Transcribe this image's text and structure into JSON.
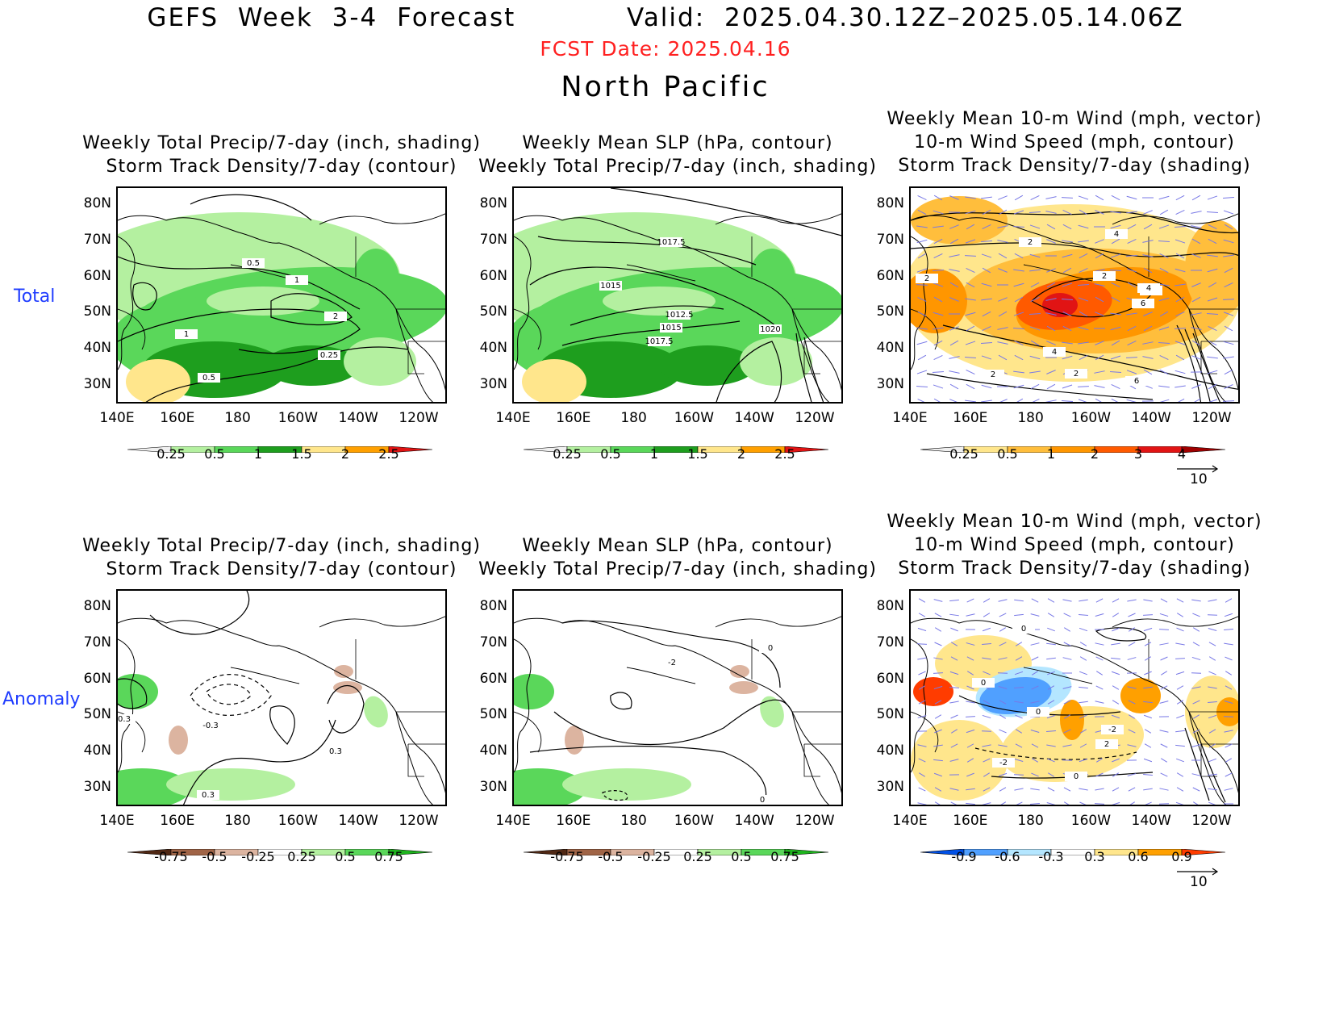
{
  "header": {
    "title": "GEFS Week 3-4 Forecast",
    "valid": "Valid: 2025.04.30.12Z–2025.05.14.06Z",
    "fcst_date": "FCST Date: 2025.04.16",
    "region": "North Pacific"
  },
  "row_labels": {
    "total": "Total",
    "anomaly": "Anomaly"
  },
  "axes": {
    "lat_ticks": [
      "80N",
      "70N",
      "60N",
      "50N",
      "40N",
      "30N"
    ],
    "lon_ticks": [
      "140E",
      "160E",
      "180",
      "160W",
      "140W",
      "120W"
    ]
  },
  "panels": {
    "total_precip": {
      "title1": "Weekly Total Precip/7-day (inch, shading)",
      "title2": "Storm Track Density/7-day (contour)",
      "contour_labels": [
        "0.5",
        "1",
        "2",
        "1",
        "0.25",
        "0.5"
      ],
      "colorbar": [
        "0.25",
        "0.5",
        "1",
        "1.5",
        "2",
        "2.5"
      ]
    },
    "total_slp": {
      "title1": "Weekly Mean SLP (hPa, contour)",
      "title2": "Weekly Total Precip/7-day (inch, shading)",
      "contour_labels": [
        "1017.5",
        "1015",
        "1012.5",
        "1015",
        "1017.5",
        "1020"
      ],
      "colorbar": [
        "0.25",
        "0.5",
        "1",
        "1.5",
        "2",
        "2.5"
      ]
    },
    "total_wind": {
      "title1": "Weekly Mean 10-m Wind (mph, vector)",
      "title2": "10-m Wind Speed (mph, contour)",
      "title3": "Storm Track Density/7-day (shading)",
      "contour_labels": [
        "2",
        "4",
        "2",
        "2",
        "4",
        "6",
        "4",
        "4",
        "2",
        "6",
        "2"
      ],
      "colorbar": [
        "0.25",
        "0.5",
        "1",
        "2",
        "3",
        "4"
      ],
      "vector_ref": "10"
    },
    "anom_precip": {
      "title1": "Weekly Total Precip/7-day (inch, shading)",
      "title2": "Storm Track Density/7-day (contour)",
      "contour_labels": [
        "0.3",
        "-0.3",
        "0.3",
        "0.3"
      ],
      "colorbar": [
        "-0.75",
        "-0.5",
        "-0.25",
        "0.25",
        "0.5",
        "0.75"
      ]
    },
    "anom_slp": {
      "title1": "Weekly Mean SLP (hPa, contour)",
      "title2": "Weekly Total Precip/7-day (inch, shading)",
      "contour_labels": [
        "-2",
        "0",
        "0"
      ],
      "colorbar": [
        "-0.75",
        "-0.5",
        "-0.25",
        "0.25",
        "0.5",
        "0.75"
      ]
    },
    "anom_wind": {
      "title1": "Weekly Mean 10-m Wind (mph, vector)",
      "title2": "10-m Wind Speed (mph, contour)",
      "title3": "Storm Track Density/7-day (shading)",
      "contour_labels": [
        "0",
        "0",
        "0",
        "-2",
        "0",
        "2",
        "-2"
      ],
      "colorbar": [
        "-0.9",
        "-0.6",
        "-0.3",
        "0.3",
        "0.6",
        "0.9"
      ],
      "vector_ref": "10"
    }
  },
  "colors": {
    "precip_scale": [
      "#f0f0f0",
      "#b4f0a0",
      "#5ad75a",
      "#1e9e1e",
      "#ffe68c",
      "#ffa000",
      "#e11414"
    ],
    "anom_precip_scale": [
      "#502814",
      "#a06446",
      "#dcb4a0",
      "#ffffff",
      "#b4f0a0",
      "#5ad75a",
      "#1eb41e"
    ],
    "storm_scale": [
      "#f0f0f0",
      "#ffe68c",
      "#ffbe3c",
      "#ff9600",
      "#ff5a00",
      "#e11414",
      "#a00000"
    ],
    "anom_storm_scale": [
      "#0050e6",
      "#50a0ff",
      "#b4e6ff",
      "#ffffff",
      "#ffe68c",
      "#ffa000",
      "#ff3c00"
    ],
    "vector": "#7878e6",
    "contour": "#000000",
    "title_red": "#ff2020",
    "row_label_blue": "#1f3cff"
  }
}
